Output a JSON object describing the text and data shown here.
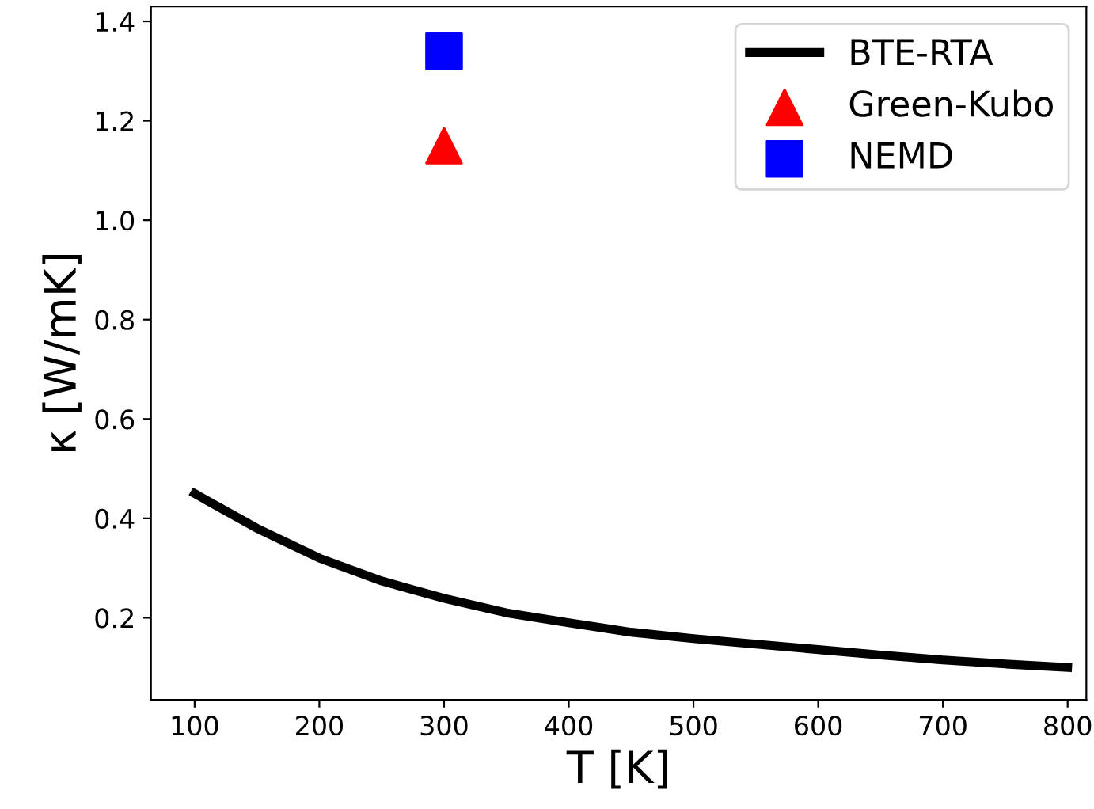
{
  "chart_data": {
    "type": "line",
    "xlabel": "T [K]",
    "ylabel": "κ [W/mK]",
    "xlim": [
      65,
      815
    ],
    "ylim": [
      0.035,
      1.43
    ],
    "xticks": [
      100,
      200,
      300,
      400,
      500,
      600,
      700,
      800
    ],
    "yticks": [
      0.2,
      0.4,
      0.6,
      0.8,
      {
        "value": 1.0,
        "label": "1.0"
      },
      1.2,
      1.4
    ],
    "legend": "top right",
    "grid": false,
    "series": [
      {
        "name": "BTE-RTA",
        "color": "#000000",
        "marker": "none",
        "line_style": "solid",
        "x": [
          100,
          150,
          200,
          250,
          300,
          350,
          400,
          450,
          500,
          550,
          600,
          650,
          700,
          750,
          800
        ],
        "values": [
          0.45,
          0.38,
          0.32,
          0.274,
          0.239,
          0.21,
          0.19,
          0.171,
          0.158,
          0.147,
          0.136,
          0.125,
          0.115,
          0.107,
          0.1
        ]
      },
      {
        "name": "Green-Kubo",
        "type": "scatter",
        "color": "#ff0000",
        "marker": "triangle",
        "x": [
          300
        ],
        "values": [
          1.15
        ]
      },
      {
        "name": "NEMD",
        "type": "scatter",
        "color": "#0000ff",
        "marker": "square",
        "x": [
          300
        ],
        "values": [
          1.34
        ]
      }
    ]
  }
}
